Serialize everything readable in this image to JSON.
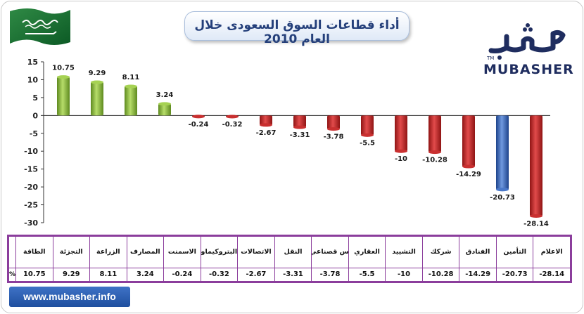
{
  "title": "أداء قطاعات السوق السعودى خلال العام 2010",
  "logo": {
    "arabic": "مباشر",
    "english": "MUBASHER",
    "tm": "TM"
  },
  "website": "www.mubasher.info",
  "table": {
    "unit_label": "%"
  },
  "colors": {
    "positive": "#8dbb3a",
    "negative": "#c62a2a",
    "highlight": "#3d6dc1",
    "table_border": "#8b3d9c",
    "title_text": "#243f7a"
  },
  "chart_data": {
    "type": "bar",
    "title": "أداء قطاعات السوق السعودى خلال العام 2010",
    "xlabel": "",
    "ylabel": "",
    "ylim": [
      -30,
      15
    ],
    "yticks": [
      15,
      10,
      5,
      0,
      -5,
      -10,
      -15,
      -20,
      -25,
      -30
    ],
    "grid": false,
    "legend": "none",
    "categories": [
      "الطاقة",
      "التجزئة",
      "الزراعة",
      "المصارف",
      "الاسمنت",
      "البتروكيماويات",
      "الاتصالات",
      "النقل",
      "س قصناعي",
      "العقاري",
      "التشييد",
      "شركك",
      "الفنادق",
      "التأمين",
      "الاعلام"
    ],
    "value_labels": [
      "10.75",
      "9.29",
      "8.11",
      "3.24",
      "-0.24",
      "-0.32",
      "-2.67",
      "-3.31",
      "-3.78",
      "-5.5",
      "-10",
      "-10.28",
      "-14.29",
      "-20.73",
      "-28.14"
    ],
    "values": [
      10.75,
      9.29,
      8.11,
      3.24,
      -0.24,
      -0.32,
      -2.67,
      -3.31,
      -3.78,
      -5.5,
      -10,
      -10.28,
      -14.29,
      -20.73,
      -28.14
    ],
    "highlight_index": 13
  }
}
